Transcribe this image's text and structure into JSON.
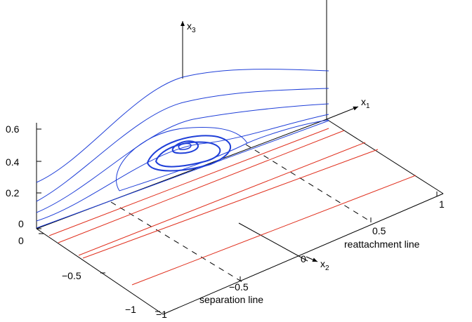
{
  "colors": {
    "streamline": "#1f3fd8",
    "wall_line": "#e0301e",
    "axis": "#000000"
  },
  "axes": {
    "x1": {
      "label": "x",
      "subscript": "1"
    },
    "x2": {
      "label": "x",
      "subscript": "2"
    },
    "x3": {
      "label": "x",
      "subscript": "3"
    }
  },
  "ticks": {
    "x3": [
      "0.6",
      "0.4",
      "0.2",
      "0"
    ],
    "x2_left": [
      "0",
      "−0.5",
      "−1"
    ],
    "x1_front": [
      "−1",
      "−0.5",
      "0.5",
      "1"
    ],
    "origin": "0"
  },
  "annotations": {
    "separation": "separation line",
    "reattachment": "reattachment line"
  }
}
